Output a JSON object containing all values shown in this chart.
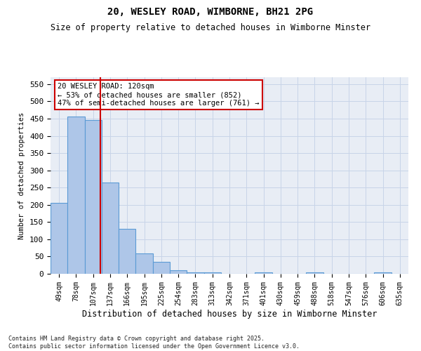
{
  "title1": "20, WESLEY ROAD, WIMBORNE, BH21 2PG",
  "title2": "Size of property relative to detached houses in Wimborne Minster",
  "xlabel": "Distribution of detached houses by size in Wimborne Minster",
  "ylabel": "Number of detached properties",
  "categories": [
    "49sqm",
    "78sqm",
    "107sqm",
    "137sqm",
    "166sqm",
    "195sqm",
    "225sqm",
    "254sqm",
    "283sqm",
    "313sqm",
    "342sqm",
    "371sqm",
    "401sqm",
    "430sqm",
    "459sqm",
    "488sqm",
    "518sqm",
    "547sqm",
    "576sqm",
    "606sqm",
    "635sqm"
  ],
  "values": [
    205,
    455,
    445,
    265,
    130,
    60,
    35,
    10,
    5,
    5,
    0,
    0,
    5,
    0,
    0,
    5,
    0,
    0,
    0,
    5,
    0
  ],
  "bar_color": "#aec6e8",
  "bar_edge_color": "#5b9bd5",
  "vline_color": "#cc0000",
  "annotation_text": "20 WESLEY ROAD: 120sqm\n← 53% of detached houses are smaller (852)\n47% of semi-detached houses are larger (761) →",
  "annotation_box_color": "#ffffff",
  "annotation_box_edge": "#cc0000",
  "grid_color": "#c8d4e8",
  "bg_color": "#e8edf5",
  "footer": "Contains HM Land Registry data © Crown copyright and database right 2025.\nContains public sector information licensed under the Open Government Licence v3.0.",
  "ylim": [
    0,
    570
  ],
  "yticks": [
    0,
    50,
    100,
    150,
    200,
    250,
    300,
    350,
    400,
    450,
    500,
    550
  ]
}
